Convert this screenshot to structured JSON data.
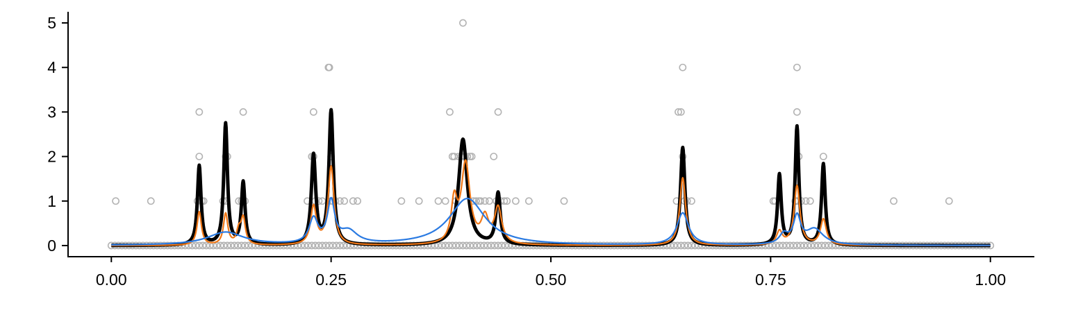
{
  "chart_data": {
    "type": "line",
    "title": "",
    "xlabel": "",
    "ylabel": "",
    "xlim": [
      -0.05,
      1.05
    ],
    "ylim": [
      -0.25,
      5.25
    ],
    "x_ticks": [
      0,
      0.25,
      0.5,
      0.75,
      1
    ],
    "x_tick_labels": [
      "0.00",
      "0.25",
      "0.50",
      "0.75",
      "1.00"
    ],
    "y_ticks": [
      0,
      1,
      2,
      3,
      4,
      5
    ],
    "y_tick_labels": [
      "0",
      "1",
      "2",
      "3",
      "4",
      "5"
    ],
    "grid": false,
    "legend": "none",
    "series": [
      {
        "color": "#000000",
        "style": "line-thick",
        "peaks": [
          {
            "x": 0.1,
            "h": 1.78,
            "w": 0.0025
          },
          {
            "x": 0.13,
            "h": 2.72,
            "w": 0.0025
          },
          {
            "x": 0.15,
            "h": 1.4,
            "w": 0.0025
          },
          {
            "x": 0.23,
            "h": 2.0,
            "w": 0.003
          },
          {
            "x": 0.25,
            "h": 3.0,
            "w": 0.003
          },
          {
            "x": 0.4,
            "h": 2.38,
            "w": 0.006
          },
          {
            "x": 0.44,
            "h": 1.15,
            "w": 0.003
          },
          {
            "x": 0.65,
            "h": 2.2,
            "w": 0.003
          },
          {
            "x": 0.76,
            "h": 1.57,
            "w": 0.0025
          },
          {
            "x": 0.78,
            "h": 2.65,
            "w": 0.0025
          },
          {
            "x": 0.81,
            "h": 1.82,
            "w": 0.0025
          }
        ]
      },
      {
        "color": "#f07818",
        "style": "line",
        "peaks": [
          {
            "x": 0.1,
            "h": 0.75,
            "w": 0.003
          },
          {
            "x": 0.13,
            "h": 0.7,
            "w": 0.003
          },
          {
            "x": 0.145,
            "h": 0.3,
            "w": 0.003
          },
          {
            "x": 0.15,
            "h": 0.58,
            "w": 0.003
          },
          {
            "x": 0.23,
            "h": 0.85,
            "w": 0.004
          },
          {
            "x": 0.25,
            "h": 1.75,
            "w": 0.004
          },
          {
            "x": 0.39,
            "h": 0.9,
            "w": 0.004
          },
          {
            "x": 0.403,
            "h": 1.8,
            "w": 0.006
          },
          {
            "x": 0.425,
            "h": 0.55,
            "w": 0.005
          },
          {
            "x": 0.44,
            "h": 0.8,
            "w": 0.005
          },
          {
            "x": 0.65,
            "h": 1.52,
            "w": 0.004
          },
          {
            "x": 0.76,
            "h": 0.3,
            "w": 0.004
          },
          {
            "x": 0.78,
            "h": 1.33,
            "w": 0.004
          },
          {
            "x": 0.81,
            "h": 0.58,
            "w": 0.004
          }
        ]
      },
      {
        "color": "#2a7ae2",
        "style": "line",
        "peaks": [
          {
            "x": 0.13,
            "h": 0.29,
            "w": 0.025
          },
          {
            "x": 0.23,
            "h": 0.55,
            "w": 0.006
          },
          {
            "x": 0.25,
            "h": 0.92,
            "w": 0.005
          },
          {
            "x": 0.27,
            "h": 0.28,
            "w": 0.012
          },
          {
            "x": 0.405,
            "h": 1.05,
            "w": 0.025
          },
          {
            "x": 0.65,
            "h": 0.72,
            "w": 0.008
          },
          {
            "x": 0.765,
            "h": 0.22,
            "w": 0.006
          },
          {
            "x": 0.78,
            "h": 0.6,
            "w": 0.005
          },
          {
            "x": 0.8,
            "h": 0.35,
            "w": 0.012
          }
        ]
      }
    ],
    "points": {
      "color": "#b3b3b3",
      "x": [
        0.005,
        0.045,
        0.098,
        0.1,
        0.1,
        0.103,
        0.105,
        0.127,
        0.13,
        0.13,
        0.132,
        0.145,
        0.148,
        0.15,
        0.15,
        0.152,
        0.223,
        0.228,
        0.23,
        0.23,
        0.232,
        0.236,
        0.24,
        0.247,
        0.248,
        0.25,
        0.25,
        0.252,
        0.255,
        0.26,
        0.265,
        0.275,
        0.28,
        0.33,
        0.35,
        0.372,
        0.38,
        0.385,
        0.388,
        0.39,
        0.392,
        0.395,
        0.398,
        0.4,
        0.402,
        0.405,
        0.408,
        0.41,
        0.412,
        0.415,
        0.418,
        0.42,
        0.425,
        0.43,
        0.435,
        0.438,
        0.44,
        0.443,
        0.447,
        0.45,
        0.46,
        0.475,
        0.515,
        0.643,
        0.645,
        0.648,
        0.65,
        0.65,
        0.652,
        0.655,
        0.66,
        0.753,
        0.755,
        0.778,
        0.78,
        0.78,
        0.78,
        0.782,
        0.785,
        0.79,
        0.795,
        0.81,
        0.89,
        0.953
      ],
      "y": [
        1,
        1,
        1,
        3,
        2,
        1,
        1,
        1,
        2,
        1,
        2,
        1,
        1,
        3,
        1,
        1,
        1,
        2,
        3,
        2,
        1,
        1,
        1,
        4,
        4,
        2,
        1,
        1,
        1,
        1,
        1,
        1,
        1,
        1,
        1,
        1,
        1,
        3,
        2,
        2,
        1,
        2,
        2,
        5,
        2,
        2,
        2,
        2,
        1,
        1,
        1,
        1,
        1,
        1,
        2,
        1,
        3,
        1,
        1,
        1,
        1,
        1,
        1,
        1,
        3,
        3,
        4,
        2,
        1,
        1,
        1,
        1,
        1,
        1,
        3,
        4,
        1,
        2,
        1,
        1,
        1,
        2,
        1,
        1
      ],
      "zeros_min": 0,
      "zeros_max": 1,
      "zeros_step": 0.004
    }
  }
}
